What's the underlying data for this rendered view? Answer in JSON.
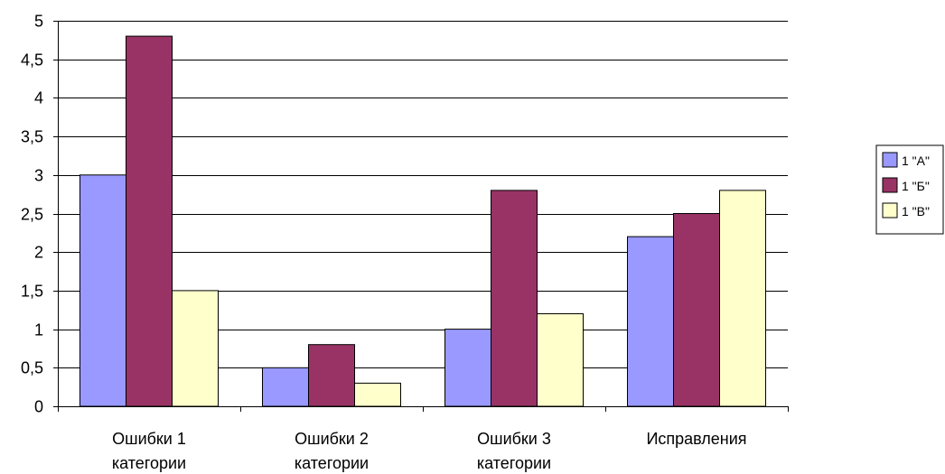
{
  "chart_data": {
    "type": "bar",
    "title": "",
    "xlabel": "",
    "ylabel": "",
    "categories": [
      [
        "Ошибки 1",
        "категории"
      ],
      [
        "Ошибки 2",
        "категории"
      ],
      [
        "Ошибки 3",
        "категории"
      ],
      [
        "Исправления"
      ]
    ],
    "series": [
      {
        "name": "1 \"А\"",
        "color": "#9999ff",
        "values": [
          3,
          0.5,
          1,
          2.2
        ]
      },
      {
        "name": "1 \"Б\"",
        "color": "#993366",
        "values": [
          4.8,
          0.8,
          2.8,
          2.5
        ]
      },
      {
        "name": "1 \"В\"",
        "color": "#ffffcc",
        "values": [
          1.5,
          0.3,
          1.2,
          2.8
        ]
      }
    ],
    "ylim": [
      0,
      5
    ],
    "yticks": [
      "0",
      "0,5",
      "1",
      "1,5",
      "2",
      "2,5",
      "3",
      "3,5",
      "4",
      "4,5",
      "5"
    ],
    "ytick_values": [
      0,
      0.5,
      1,
      1.5,
      2,
      2.5,
      3,
      3.5,
      4,
      4.5,
      5
    ],
    "grid": true,
    "legend_position": "right"
  }
}
